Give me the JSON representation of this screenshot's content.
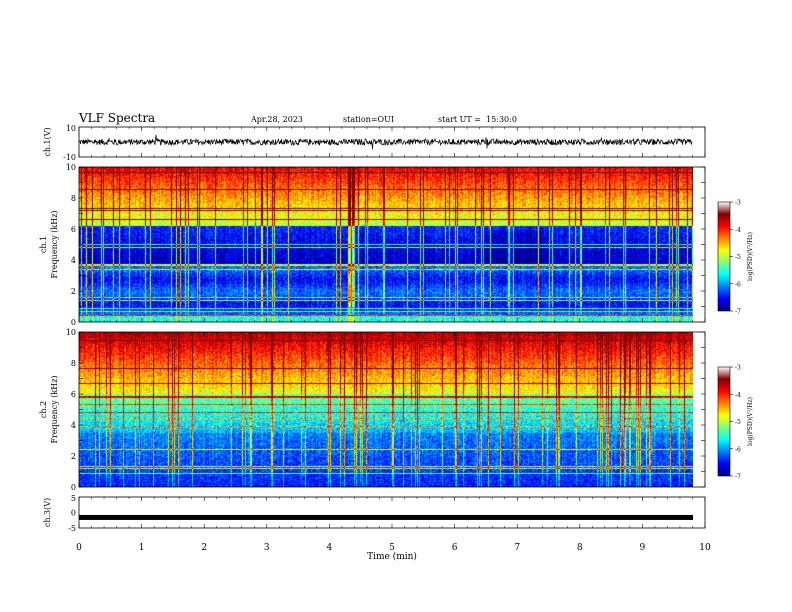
{
  "header": {
    "title": "VLF Spectra",
    "date": "Apr.28, 2023",
    "station": "station=OUI",
    "start": "start UT =  15:30:0"
  },
  "colors": {
    "colormap": [
      "#00007f",
      "#0000ff",
      "#007fff",
      "#00ffff",
      "#7fff7f",
      "#ffff00",
      "#ff7f00",
      "#ff0000",
      "#7f0000"
    ],
    "trace": "#000000"
  },
  "chart_data": [
    {
      "type": "line",
      "name": "ch1-waveform",
      "ylabel": "ch.1(V)",
      "ylim": [
        -10,
        10
      ],
      "y_ticks": [
        "10",
        "-10"
      ],
      "description_values": {
        "baseline_V": 0,
        "noise_amplitude_V": 2,
        "spike_amplitude_V": 5
      }
    },
    {
      "type": "heatmap",
      "name": "ch1-spectrogram",
      "ylabel": "ch.1\nFrequency (kHz)",
      "ylabel_lines": [
        "ch.1",
        "Frequency (kHz)"
      ],
      "ylim": [
        0,
        10
      ],
      "y_ticks": [
        "0",
        "2",
        "4",
        "6",
        "8",
        "10"
      ],
      "xlim": [
        0,
        10
      ],
      "colorbar": {
        "label": "log(PSD)(V²/Hz)",
        "range": [
          -7,
          -3
        ],
        "ticks": [
          "-3",
          "-4",
          "-5",
          "-6",
          "-7"
        ]
      }
    },
    {
      "type": "heatmap",
      "name": "ch2-spectrogram",
      "ylabel_lines": [
        "ch.2",
        "Frequency (kHz)"
      ],
      "ylim": [
        0,
        10
      ],
      "y_ticks": [
        "0",
        "2",
        "4",
        "6",
        "8",
        "10"
      ],
      "xlim": [
        0,
        10
      ],
      "colorbar": {
        "label": "log(PSD)(V²/Hz)",
        "range": [
          -7,
          -3
        ],
        "ticks": [
          "-3",
          "-4",
          "-5",
          "-6",
          "-7"
        ]
      }
    },
    {
      "type": "line",
      "name": "ch3-waveform",
      "ylabel": "ch.3(V)",
      "ylim": [
        -5,
        5
      ],
      "y_ticks": [
        "5",
        "0",
        "-5"
      ],
      "description_values": {
        "level_V": -1.6
      }
    }
  ],
  "xaxis": {
    "label": "Time (min)",
    "range": [
      0,
      10
    ],
    "ticks": [
      "0",
      "1",
      "2",
      "3",
      "4",
      "5",
      "6",
      "7",
      "8",
      "9",
      "10"
    ]
  }
}
